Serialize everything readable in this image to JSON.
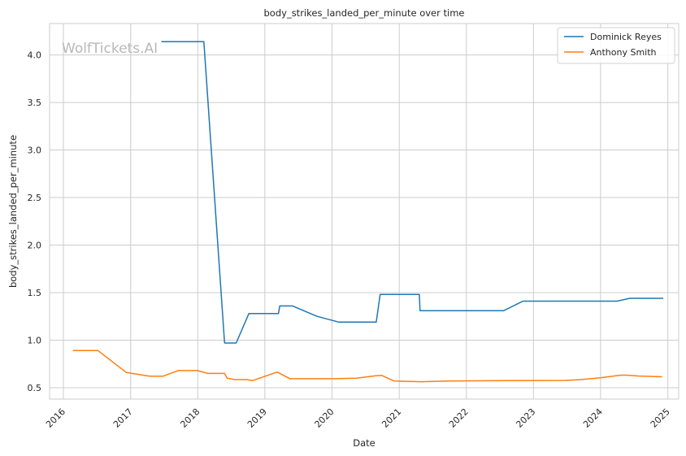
{
  "chart_data": {
    "type": "line",
    "title": "body_strikes_landed_per_minute over time",
    "xlabel": "Date",
    "ylabel": "body_strikes_landed_per_minute",
    "watermark": "WolfTickets.AI",
    "x_ticks": [
      "2016",
      "2017",
      "2018",
      "2019",
      "2020",
      "2021",
      "2022",
      "2023",
      "2024",
      "2025"
    ],
    "y_ticks": [
      "0.5",
      "1.0",
      "1.5",
      "2.0",
      "2.5",
      "3.0",
      "3.5",
      "4.0"
    ],
    "xlim": [
      "2015-10-18",
      "2025-03-01"
    ],
    "ylim": [
      0.38,
      4.33
    ],
    "grid": true,
    "legend_position": "top-right",
    "series": [
      {
        "name": "Dominick Reyes",
        "color": "#1f77b4",
        "points": [
          [
            "2017-06-17",
            4.14
          ],
          [
            "2018-02-03",
            4.14
          ],
          [
            "2018-05-27",
            0.97
          ],
          [
            "2018-07-29",
            0.97
          ],
          [
            "2018-10-06",
            1.28
          ],
          [
            "2019-03-16",
            1.28
          ],
          [
            "2019-03-23",
            1.36
          ],
          [
            "2019-06-01",
            1.36
          ],
          [
            "2019-10-12",
            1.25
          ],
          [
            "2020-02-08",
            1.19
          ],
          [
            "2020-08-29",
            1.19
          ],
          [
            "2020-09-19",
            1.48
          ],
          [
            "2021-04-20",
            1.48
          ],
          [
            "2021-04-24",
            1.31
          ],
          [
            "2022-07-23",
            1.31
          ],
          [
            "2022-11-05",
            1.41
          ],
          [
            "2024-03-30",
            1.41
          ],
          [
            "2024-06-08",
            1.44
          ],
          [
            "2024-12-07",
            1.44
          ]
        ]
      },
      {
        "name": "Anthony Smith",
        "color": "#ff7f0e",
        "points": [
          [
            "2016-02-21",
            0.89
          ],
          [
            "2016-07-07",
            0.89
          ],
          [
            "2016-12-09",
            0.66
          ],
          [
            "2017-04-15",
            0.62
          ],
          [
            "2017-06-25",
            0.62
          ],
          [
            "2017-09-16",
            0.68
          ],
          [
            "2017-12-30",
            0.68
          ],
          [
            "2018-02-25",
            0.65
          ],
          [
            "2018-05-27",
            0.65
          ],
          [
            "2018-06-10",
            0.6
          ],
          [
            "2018-07-22",
            0.585
          ],
          [
            "2018-09-23",
            0.585
          ],
          [
            "2018-10-27",
            0.575
          ],
          [
            "2019-03-09",
            0.665
          ],
          [
            "2019-05-18",
            0.595
          ],
          [
            "2020-01-20",
            0.595
          ],
          [
            "2020-05-13",
            0.6
          ],
          [
            "2020-08-29",
            0.625
          ],
          [
            "2020-09-27",
            0.63
          ],
          [
            "2020-12-05",
            0.57
          ],
          [
            "2021-05-01",
            0.563
          ],
          [
            "2021-09-25",
            0.57
          ],
          [
            "2022-08-01",
            0.574
          ],
          [
            "2023-06-24",
            0.577
          ],
          [
            "2023-09-16",
            0.585
          ],
          [
            "2024-01-01",
            0.605
          ],
          [
            "2024-04-23",
            0.632
          ],
          [
            "2024-05-20",
            0.632
          ],
          [
            "2024-07-27",
            0.623
          ],
          [
            "2024-12-01",
            0.615
          ]
        ]
      }
    ]
  }
}
